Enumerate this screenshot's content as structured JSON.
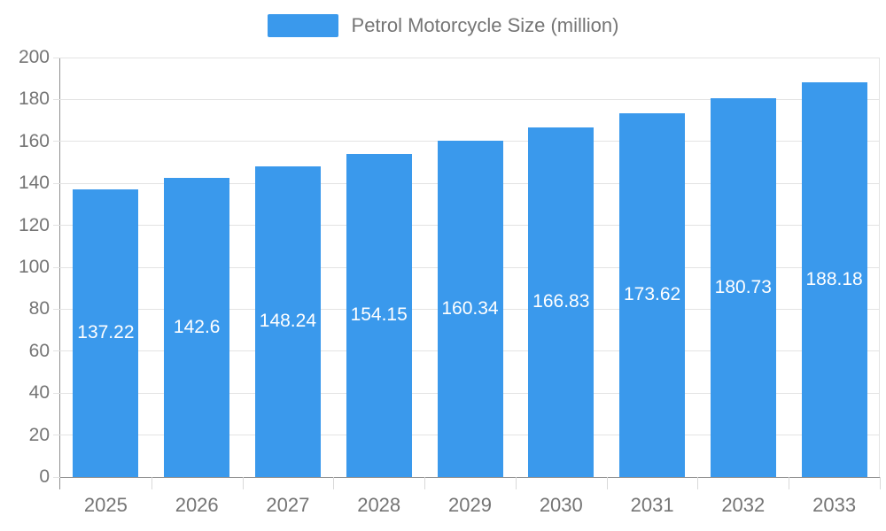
{
  "legend": {
    "label": "Petrol Motorcycle Size (million)"
  },
  "chart_data": {
    "type": "bar",
    "title": "",
    "xlabel": "",
    "ylabel": "",
    "categories": [
      "2025",
      "2026",
      "2027",
      "2028",
      "2029",
      "2030",
      "2031",
      "2032",
      "2033"
    ],
    "values": [
      137.22,
      142.6,
      148.24,
      154.15,
      160.34,
      166.83,
      173.62,
      180.73,
      188.18
    ],
    "series_name": "Petrol Motorcycle Size (million)",
    "ylim": [
      0,
      200
    ],
    "ytick_step": 20,
    "ytick_labels": [
      "0",
      "20",
      "40",
      "60",
      "80",
      "100",
      "120",
      "140",
      "160",
      "180",
      "200"
    ],
    "grid": true,
    "legend_position": "top-center",
    "value_labels_inside_bars": true,
    "colors": {
      "bar": "#3a99ec",
      "grid": "#e3e3e3",
      "axis": "#8f8f8f",
      "tick": "#d9d9d9",
      "tick_text": "#757575",
      "value_label": "#ffffff",
      "background": "#ffffff"
    }
  }
}
